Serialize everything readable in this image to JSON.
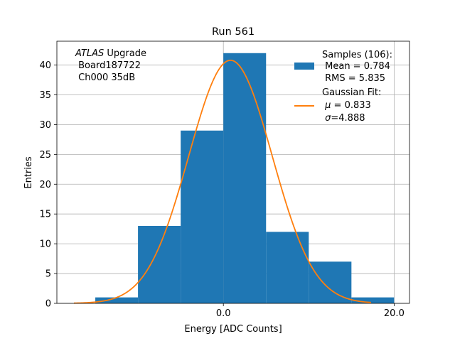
{
  "chart_data": {
    "type": "bar",
    "title": "Run 561",
    "xlabel": "Energy [ADC Counts]",
    "ylabel": "Entries",
    "xlim": [
      -19.5,
      21.8
    ],
    "ylim": [
      0,
      44
    ],
    "grid": true,
    "bin_edges": [
      -15,
      -10,
      -5,
      0,
      5,
      10,
      15,
      20
    ],
    "values": [
      1,
      13,
      29,
      42,
      12,
      7,
      1
    ],
    "x_ticks": [
      0,
      20
    ],
    "x_tick_labels": [
      "0.0",
      "20.0"
    ],
    "y_ticks": [
      0,
      5,
      10,
      15,
      20,
      25,
      30,
      35,
      40
    ],
    "y_tick_labels": [
      "0",
      "5",
      "10",
      "15",
      "20",
      "25",
      "30",
      "35",
      "40"
    ],
    "fit": {
      "type": "gaussian",
      "mu": 0.833,
      "sigma": 4.888,
      "amplitude": 40.8,
      "range": [
        -17.5,
        17.3
      ]
    },
    "colors": {
      "histogram": "#1f77b4",
      "fit": "#ff7f0e",
      "grid": "#b0b0b0"
    },
    "annotation": {
      "experiment": "ATLAS",
      "experiment_suffix": " Upgrade",
      "board": " Board187722",
      "channel": " Ch000 35dB"
    },
    "legend": {
      "placement": "top-right",
      "samples_title": "Samples (106):",
      "samples_mean": " Mean = 0.784",
      "samples_rms": " RMS = 5.835",
      "fit_title": "Gaussian Fit:",
      "fit_mu_symbol": "μ",
      "fit_mu_value": " = 0.833",
      "fit_sigma_symbol": "σ",
      "fit_sigma_value": "=4.888"
    }
  }
}
